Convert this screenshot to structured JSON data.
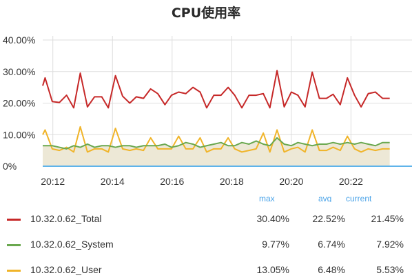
{
  "title": "CPU使用率",
  "legend_headers": {
    "max": "max",
    "avg": "avg",
    "current": "current"
  },
  "colors": {
    "total": "#c62828",
    "system": "#6aa84f",
    "user": "#f0b429",
    "fill": "#ede8d6",
    "baseline": "#5fb4ea",
    "grid": "#dddddd"
  },
  "legend_rows": [
    {
      "name": "10.32.0.62_Total",
      "max": "30.40%",
      "avg": "22.52%",
      "current": "21.45%",
      "color_key": "total"
    },
    {
      "name": "10.32.0.62_System",
      "max": "9.77%",
      "avg": "6.74%",
      "current": "7.92%",
      "color_key": "system"
    },
    {
      "name": "10.32.0.62_User",
      "max": "13.05%",
      "avg": "6.48%",
      "current": "5.53%",
      "color_key": "user"
    }
  ],
  "chart_data": {
    "type": "line",
    "title": "CPU使用率",
    "y_ticks": [
      "0%",
      "10.00%",
      "20.00%",
      "30.00%",
      "40.00%"
    ],
    "x_ticks": [
      "20:12",
      "20:14",
      "20:16",
      "20:18",
      "20:20",
      "20:22"
    ],
    "ylim": [
      0,
      40
    ],
    "xlim": [
      -1.7,
      57.0
    ],
    "x_tick_positions": [
      0,
      10,
      20,
      30,
      40,
      50
    ],
    "grid": true,
    "series": [
      {
        "name": "10.32.0.62_Total",
        "color_key": "total",
        "x": [
          -1.7,
          -1.3,
          -0.1,
          1.1,
          2.3,
          3.5,
          4.6,
          5.8,
          7.0,
          8.2,
          9.3,
          10.5,
          11.7,
          12.9,
          14.0,
          15.2,
          16.4,
          17.6,
          18.8,
          19.9,
          21.1,
          22.3,
          23.5,
          24.7,
          25.8,
          27.0,
          28.2,
          29.4,
          30.5,
          31.7,
          32.9,
          34.1,
          35.3,
          36.4,
          37.6,
          38.8,
          40.0,
          41.1,
          42.3,
          43.5,
          44.7,
          45.9,
          47.0,
          48.2,
          49.4,
          50.6,
          51.7,
          52.9,
          54.1,
          55.3,
          56.5
        ],
        "values": [
          25.5,
          28.0,
          20.5,
          20.2,
          22.5,
          18.5,
          29.5,
          18.8,
          22.0,
          22.0,
          18.5,
          28.7,
          22.2,
          20.0,
          22.0,
          21.5,
          24.5,
          23.0,
          19.5,
          22.5,
          23.5,
          23.0,
          25.0,
          23.5,
          18.5,
          22.5,
          22.5,
          25.0,
          22.5,
          18.5,
          22.5,
          22.5,
          23.0,
          18.5,
          30.3,
          18.8,
          23.5,
          22.5,
          18.8,
          29.8,
          21.5,
          21.5,
          22.8,
          19.5,
          28.0,
          22.5,
          18.8,
          23.0,
          23.5,
          21.5,
          21.5
        ]
      },
      {
        "name": "10.32.0.62_System",
        "color_key": "system",
        "x": [
          -1.7,
          -0.1,
          1.1,
          2.3,
          3.5,
          4.6,
          5.8,
          7.0,
          8.2,
          9.3,
          10.5,
          11.7,
          12.9,
          14.0,
          15.2,
          16.4,
          17.6,
          18.8,
          19.9,
          21.1,
          22.3,
          23.5,
          24.7,
          25.8,
          27.0,
          28.2,
          29.4,
          30.5,
          31.7,
          32.9,
          34.1,
          35.3,
          36.4,
          37.6,
          38.8,
          40.0,
          41.1,
          42.3,
          43.5,
          44.7,
          45.9,
          47.0,
          48.2,
          49.4,
          50.6,
          51.7,
          52.9,
          54.1,
          55.3,
          56.5
        ],
        "values": [
          6.5,
          6.5,
          6.0,
          5.5,
          6.5,
          6.0,
          7.0,
          6.0,
          6.5,
          6.5,
          6.0,
          6.5,
          6.5,
          6.0,
          6.5,
          6.5,
          6.5,
          7.0,
          6.0,
          6.5,
          7.5,
          7.0,
          6.0,
          6.5,
          7.0,
          7.5,
          6.5,
          6.5,
          7.5,
          7.0,
          8.0,
          7.0,
          6.5,
          9.0,
          7.0,
          6.5,
          7.5,
          7.0,
          6.5,
          7.0,
          7.0,
          7.5,
          7.0,
          7.5,
          7.0,
          7.5,
          7.0,
          6.5,
          7.5,
          7.5
        ]
      },
      {
        "name": "10.32.0.62_User",
        "color_key": "user",
        "x": [
          -1.7,
          -1.3,
          -0.1,
          1.1,
          2.3,
          3.5,
          4.6,
          5.8,
          7.0,
          8.2,
          9.3,
          10.5,
          11.7,
          12.9,
          14.0,
          15.2,
          16.4,
          17.6,
          18.8,
          19.9,
          21.1,
          22.3,
          23.5,
          24.7,
          25.8,
          27.0,
          28.2,
          29.4,
          30.5,
          31.7,
          32.9,
          34.1,
          35.3,
          36.4,
          37.6,
          38.8,
          40.0,
          41.1,
          42.3,
          43.5,
          44.7,
          45.9,
          47.0,
          48.2,
          49.4,
          50.6,
          51.7,
          52.9,
          54.1,
          55.3,
          56.5
        ],
        "values": [
          10.0,
          11.5,
          5.5,
          5.0,
          6.0,
          4.5,
          12.5,
          4.5,
          5.5,
          5.5,
          4.5,
          12.0,
          5.5,
          5.0,
          5.5,
          5.0,
          9.0,
          5.5,
          5.5,
          5.5,
          9.5,
          5.5,
          5.5,
          9.0,
          4.5,
          5.5,
          5.5,
          9.0,
          5.5,
          4.5,
          5.0,
          5.5,
          10.5,
          4.5,
          11.5,
          4.5,
          5.5,
          6.0,
          4.5,
          11.5,
          5.0,
          5.0,
          6.0,
          5.0,
          9.5,
          5.5,
          4.5,
          5.5,
          5.0,
          5.5,
          5.5
        ]
      }
    ]
  }
}
